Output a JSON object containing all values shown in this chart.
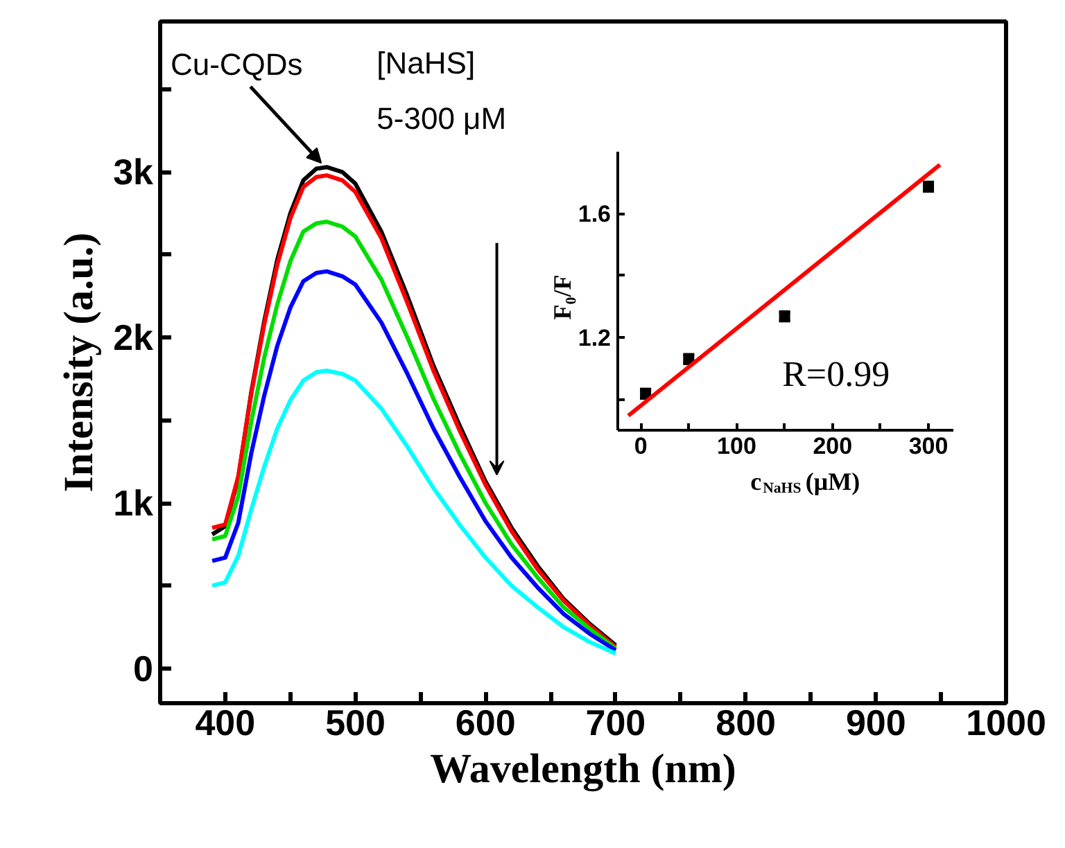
{
  "chart_data": [
    {
      "type": "line",
      "xlabel": "Wavelength (nm)",
      "ylabel": "Intensity (a.u.)",
      "x": [
        390,
        400,
        410,
        420,
        430,
        440,
        450,
        460,
        470,
        478,
        490,
        500,
        520,
        540,
        560,
        580,
        600,
        620,
        640,
        660,
        680,
        700
      ],
      "series": [
        {
          "color": "#000000",
          "values": [
            810,
            860,
            1150,
            1670,
            2100,
            2470,
            2750,
            2950,
            3020,
            3030,
            3000,
            2930,
            2640,
            2250,
            1830,
            1470,
            1130,
            850,
            620,
            420,
            270,
            140
          ]
        },
        {
          "color": "#ff0000",
          "values": [
            850,
            870,
            1160,
            1660,
            2080,
            2440,
            2720,
            2910,
            2970,
            2980,
            2950,
            2880,
            2600,
            2210,
            1800,
            1440,
            1110,
            830,
            600,
            410,
            260,
            130
          ]
        },
        {
          "color": "#00dd00",
          "values": [
            780,
            800,
            1040,
            1490,
            1880,
            2200,
            2460,
            2640,
            2690,
            2700,
            2670,
            2610,
            2350,
            2000,
            1630,
            1300,
            1000,
            750,
            550,
            370,
            240,
            120
          ]
        },
        {
          "color": "#0000ff",
          "values": [
            650,
            670,
            880,
            1300,
            1650,
            1950,
            2180,
            2340,
            2390,
            2400,
            2370,
            2320,
            2090,
            1780,
            1450,
            1160,
            890,
            670,
            490,
            330,
            210,
            110
          ]
        },
        {
          "color": "#00ffff",
          "values": [
            500,
            520,
            680,
            960,
            1220,
            1450,
            1620,
            1740,
            1790,
            1800,
            1780,
            1740,
            1570,
            1340,
            1090,
            870,
            670,
            500,
            370,
            250,
            160,
            90
          ]
        }
      ],
      "xlim": [
        350,
        1000
      ],
      "ylim": [
        -210,
        3910
      ],
      "xticks": [
        400,
        {
          "value": 450,
          "label": null
        },
        500,
        {
          "value": 550,
          "label": null
        },
        600,
        {
          "value": 650,
          "label": null
        },
        700,
        {
          "value": 750,
          "label": null
        },
        800,
        {
          "value": 850,
          "label": null
        },
        900,
        {
          "value": 950,
          "label": null
        },
        1000
      ],
      "yticks": [
        0,
        {
          "value": 500,
          "label": null
        },
        {
          "value": 1000,
          "label": "1k"
        },
        {
          "value": 1500,
          "label": null
        },
        {
          "value": 2000,
          "label": "2k"
        },
        {
          "value": 2500,
          "label": null
        },
        {
          "value": 3000,
          "label": "3k"
        },
        {
          "value": 3500,
          "label": null
        }
      ],
      "annotations": [
        {
          "text": "Cu-CQDs",
          "x": 478,
          "y": 3030
        },
        "[NaHS]",
        "5-300 μM"
      ]
    },
    {
      "type": "scatter",
      "xlabel": "c$_{NaHS}$ (μM)",
      "ylabel": "F₀/F",
      "x": [
        5,
        50,
        150,
        300
      ],
      "series": [
        {
          "type": "scatter",
          "marker": "square",
          "color": "#000000",
          "values": [
            1.018,
            1.13,
            1.268,
            1.687
          ],
          "errors": [
            0.015,
            0.015,
            0.015,
            0.015
          ]
        },
        {
          "type": "line",
          "color": "#ff0000",
          "x": [
            -13,
            312
          ],
          "values": [
            0.947,
            1.758
          ]
        }
      ],
      "xlim": [
        -24,
        326
      ],
      "ylim": [
        0.9,
        1.8
      ],
      "xticks": [
        0,
        {
          "value": 50,
          "label": null
        },
        100,
        {
          "value": 150,
          "label": null
        },
        200,
        {
          "value": 250,
          "label": null
        },
        300
      ],
      "yticks": [
        {
          "value": 1.0,
          "label": null
        },
        1.2,
        {
          "value": 1.4,
          "label": null
        },
        1.6
      ],
      "annotations": [
        "R=0.99"
      ]
    }
  ]
}
